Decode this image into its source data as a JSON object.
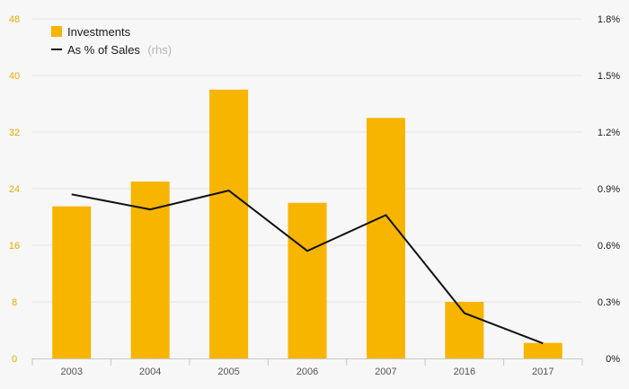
{
  "chart_data": {
    "type": "bar",
    "categories": [
      "2003",
      "2004",
      "2005",
      "2006",
      "2007",
      "2016",
      "2017"
    ],
    "series": [
      {
        "name": "Investments",
        "type": "bar",
        "axis": "left",
        "color": "#f7b500",
        "values": [
          21.5,
          25,
          38,
          22,
          34,
          8,
          2.2
        ]
      },
      {
        "name": "As % of Sales",
        "name_suffix": "(rhs)",
        "type": "line",
        "axis": "right",
        "color": "#111111",
        "values": [
          0.87,
          0.79,
          0.89,
          0.57,
          0.76,
          0.24,
          0.08
        ]
      }
    ],
    "left_axis": {
      "min": 0,
      "max": 48,
      "ticks": [
        "0",
        "8",
        "16",
        "24",
        "32",
        "40",
        "48"
      ],
      "color": "#e8a900"
    },
    "right_axis": {
      "min": 0,
      "max": 1.8,
      "ticks": [
        "0%",
        "0.3%",
        "0.6%",
        "0.9%",
        "1.2%",
        "1.5%",
        "1.8%"
      ]
    },
    "grid": true,
    "legend_position": "top-left"
  }
}
